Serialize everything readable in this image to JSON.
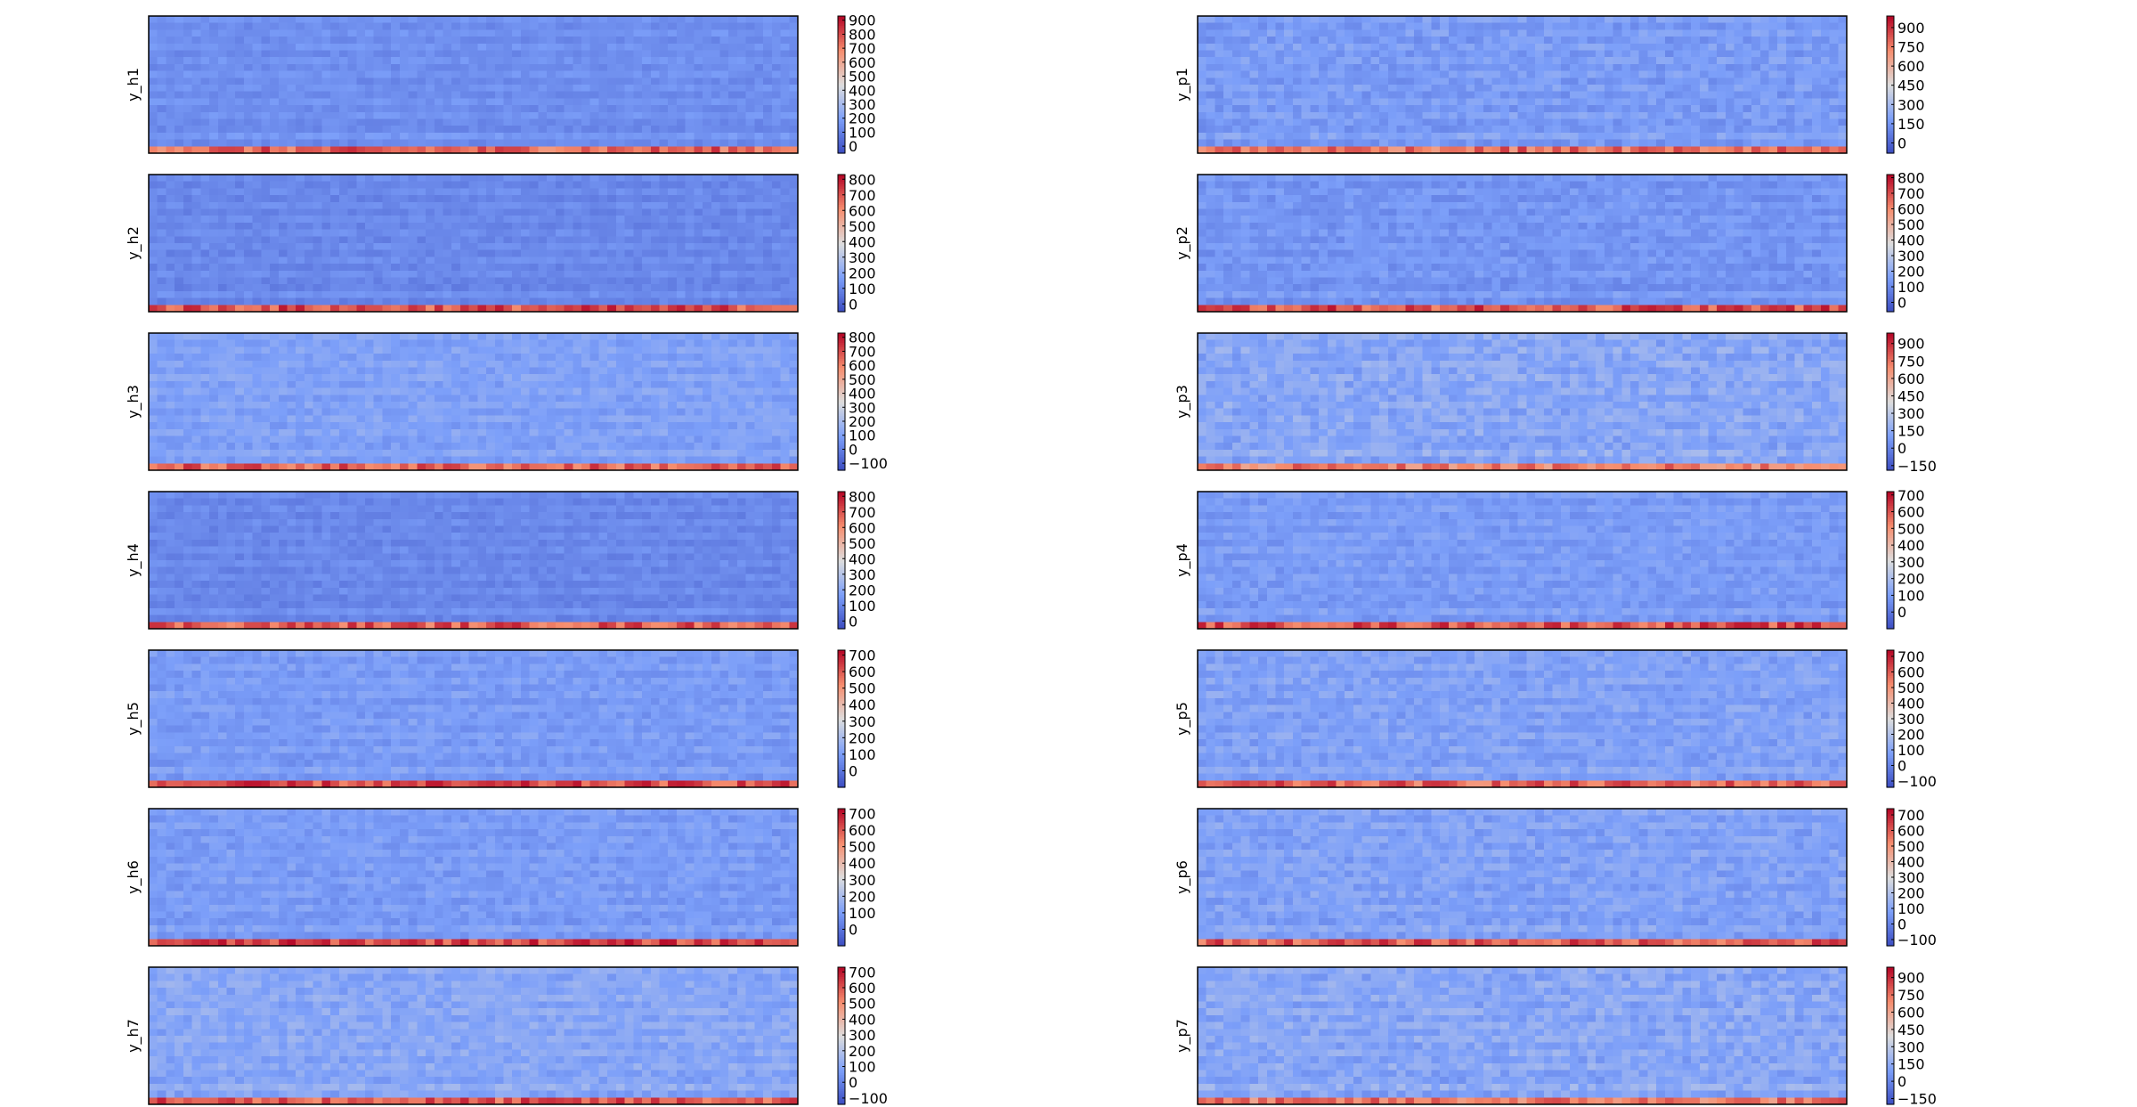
{
  "chart_data": {
    "type": "heatmap",
    "colormap": "coolwarm",
    "grid": false,
    "layout": {
      "rows": 7,
      "cols": 2,
      "order": "column-major"
    },
    "panels": [
      {
        "ylabel": "y_h1",
        "colorbar": {
          "ticks": [
            "0",
            "100",
            "200",
            "300",
            "400",
            "500",
            "600",
            "700",
            "800",
            "900"
          ],
          "vmin": -50,
          "vmax": 930
        },
        "rows": 20,
        "columns": 75,
        "background_level": 0.2,
        "bottom_row_level": 0.82,
        "texture": 0.03
      },
      {
        "ylabel": "y_h2",
        "colorbar": {
          "ticks": [
            "0",
            "100",
            "200",
            "300",
            "400",
            "500",
            "600",
            "700",
            "800"
          ],
          "vmin": -50,
          "vmax": 830
        },
        "rows": 20,
        "columns": 75,
        "background_level": 0.18,
        "bottom_row_level": 0.86,
        "texture": 0.03
      },
      {
        "ylabel": "y_h3",
        "colorbar": {
          "ticks": [
            "−100",
            "0",
            "100",
            "200",
            "300",
            "400",
            "500",
            "600",
            "700",
            "800"
          ],
          "vmin": -150,
          "vmax": 830
        },
        "rows": 20,
        "columns": 75,
        "background_level": 0.26,
        "bottom_row_level": 0.82,
        "texture": 0.04
      },
      {
        "ylabel": "y_h4",
        "colorbar": {
          "ticks": [
            "0",
            "100",
            "200",
            "300",
            "400",
            "500",
            "600",
            "700",
            "800"
          ],
          "vmin": -50,
          "vmax": 830
        },
        "rows": 20,
        "columns": 75,
        "background_level": 0.18,
        "bottom_row_level": 0.84,
        "texture": 0.03
      },
      {
        "ylabel": "y_h5",
        "colorbar": {
          "ticks": [
            "0",
            "100",
            "200",
            "300",
            "400",
            "500",
            "600",
            "700"
          ],
          "vmin": -100,
          "vmax": 730
        },
        "rows": 20,
        "columns": 75,
        "background_level": 0.24,
        "bottom_row_level": 0.86,
        "texture": 0.04
      },
      {
        "ylabel": "y_h6",
        "colorbar": {
          "ticks": [
            "0",
            "100",
            "200",
            "300",
            "400",
            "500",
            "600",
            "700"
          ],
          "vmin": -100,
          "vmax": 730
        },
        "rows": 20,
        "columns": 75,
        "background_level": 0.24,
        "bottom_row_level": 0.88,
        "texture": 0.04
      },
      {
        "ylabel": "y_h7",
        "colorbar": {
          "ticks": [
            "−100",
            "0",
            "100",
            "200",
            "300",
            "400",
            "500",
            "600",
            "700"
          ],
          "vmin": -140,
          "vmax": 730
        },
        "rows": 20,
        "columns": 75,
        "background_level": 0.28,
        "bottom_row_level": 0.84,
        "texture": 0.05
      },
      {
        "ylabel": "y_p1",
        "colorbar": {
          "ticks": [
            "0",
            "150",
            "300",
            "450",
            "600",
            "750",
            "900"
          ],
          "vmin": -80,
          "vmax": 990
        },
        "rows": 20,
        "columns": 75,
        "background_level": 0.24,
        "bottom_row_level": 0.8,
        "texture": 0.05
      },
      {
        "ylabel": "y_p2",
        "colorbar": {
          "ticks": [
            "0",
            "100",
            "200",
            "300",
            "400",
            "500",
            "600",
            "700",
            "800"
          ],
          "vmin": -60,
          "vmax": 820
        },
        "rows": 20,
        "columns": 75,
        "background_level": 0.22,
        "bottom_row_level": 0.86,
        "texture": 0.04
      },
      {
        "ylabel": "y_p3",
        "colorbar": {
          "ticks": [
            "−150",
            "0",
            "150",
            "300",
            "450",
            "600",
            "750",
            "900"
          ],
          "vmin": -190,
          "vmax": 990
        },
        "rows": 20,
        "columns": 75,
        "background_level": 0.28,
        "bottom_row_level": 0.76,
        "texture": 0.06
      },
      {
        "ylabel": "y_p4",
        "colorbar": {
          "ticks": [
            "0",
            "100",
            "200",
            "300",
            "400",
            "500",
            "600",
            "700"
          ],
          "vmin": -100,
          "vmax": 720
        },
        "rows": 20,
        "columns": 75,
        "background_level": 0.24,
        "bottom_row_level": 0.86,
        "texture": 0.04
      },
      {
        "ylabel": "y_p5",
        "colorbar": {
          "ticks": [
            "−100",
            "0",
            "100",
            "200",
            "300",
            "400",
            "500",
            "600",
            "700"
          ],
          "vmin": -140,
          "vmax": 740
        },
        "rows": 20,
        "columns": 75,
        "background_level": 0.26,
        "bottom_row_level": 0.82,
        "texture": 0.05
      },
      {
        "ylabel": "y_p6",
        "colorbar": {
          "ticks": [
            "−100",
            "0",
            "100",
            "200",
            "300",
            "400",
            "500",
            "600",
            "700"
          ],
          "vmin": -140,
          "vmax": 740
        },
        "rows": 20,
        "columns": 75,
        "background_level": 0.26,
        "bottom_row_level": 0.84,
        "texture": 0.05
      },
      {
        "ylabel": "y_p7",
        "colorbar": {
          "ticks": [
            "−150",
            "0",
            "150",
            "300",
            "450",
            "600",
            "750",
            "900"
          ],
          "vmin": -200,
          "vmax": 990
        },
        "rows": 20,
        "columns": 75,
        "background_level": 0.28,
        "bottom_row_level": 0.78,
        "texture": 0.06
      }
    ]
  }
}
